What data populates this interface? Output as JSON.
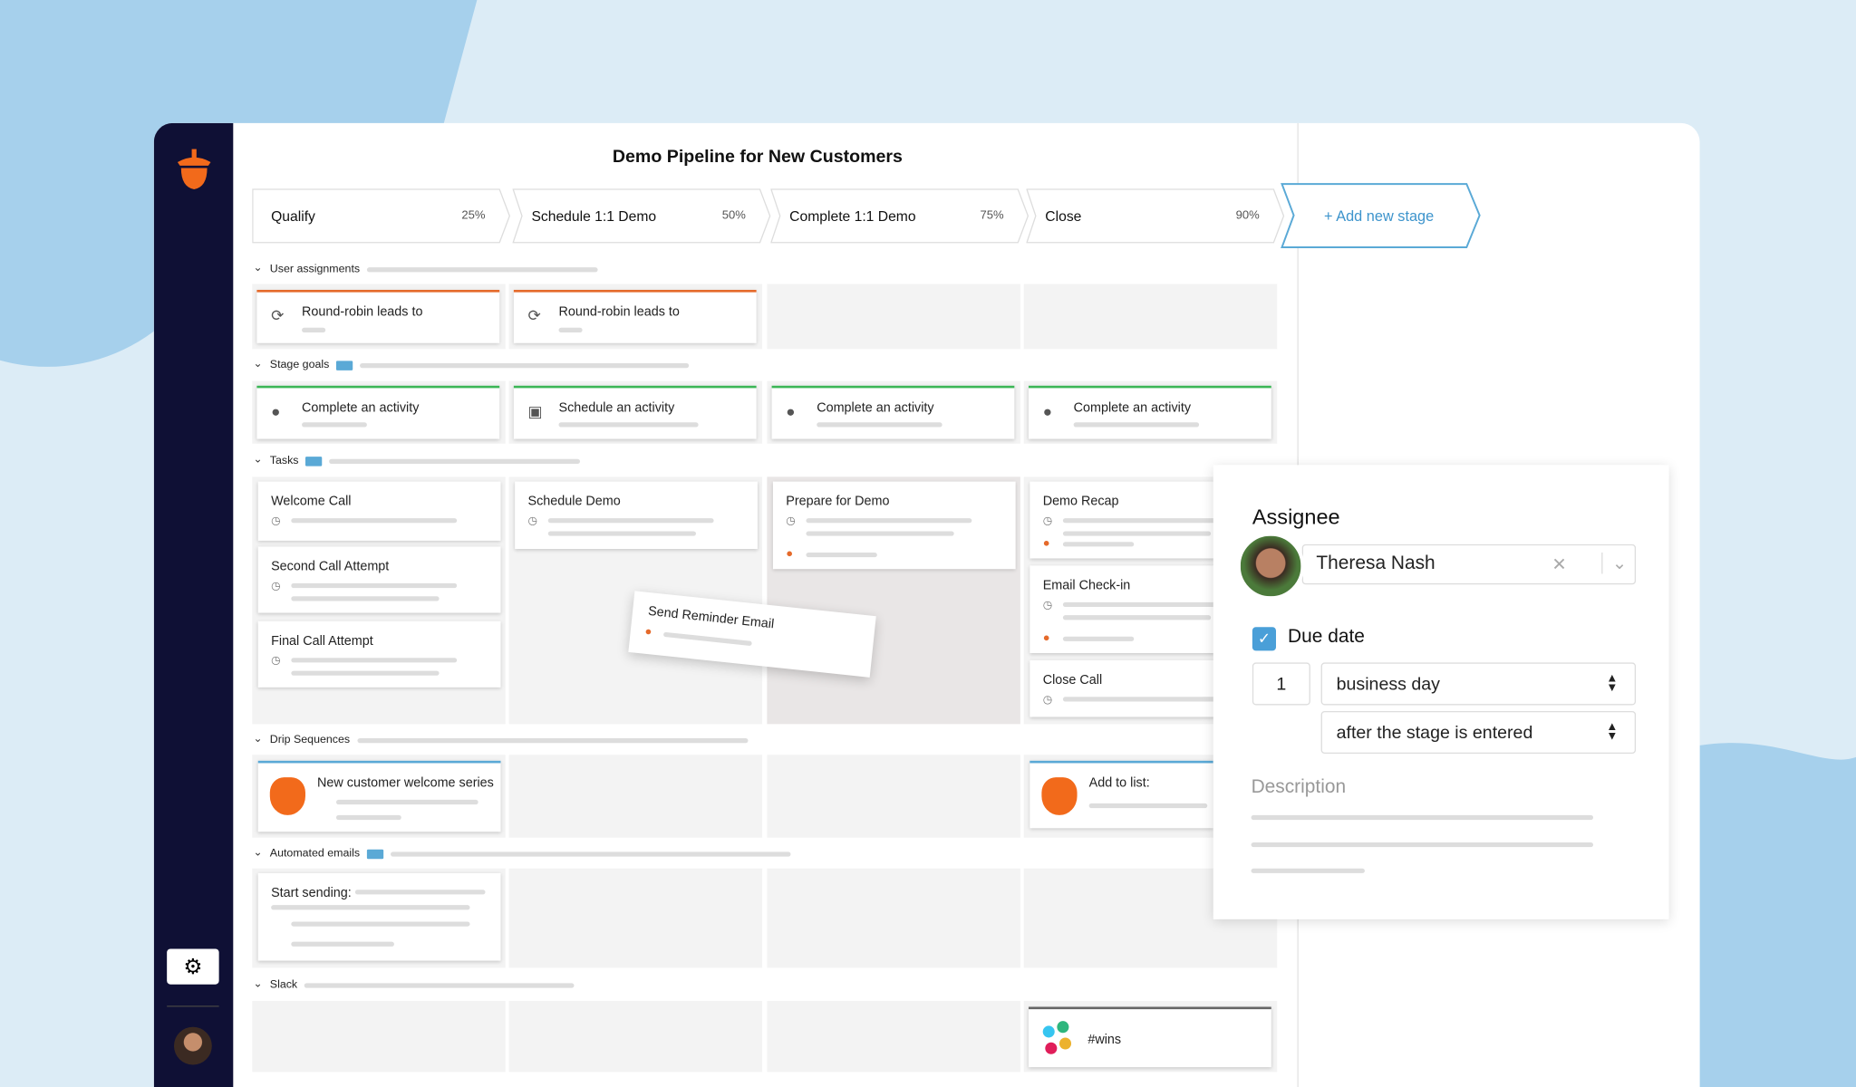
{
  "title": "Demo Pipeline for New Customers",
  "stages": [
    {
      "name": "Qualify",
      "percent": "25%"
    },
    {
      "name": "Schedule 1:1 Demo",
      "percent": "50%"
    },
    {
      "name": "Complete 1:1 Demo",
      "percent": "75%"
    },
    {
      "name": "Close",
      "percent": "90%"
    }
  ],
  "add_stage": "+ Add new stage",
  "sections": {
    "user_assignments": {
      "label": "User assignments",
      "cards": [
        "Round-robin leads to",
        "Round-robin leads to"
      ]
    },
    "stage_goals": {
      "label": "Stage goals",
      "cards": [
        "Complete an activity",
        "Schedule an activity",
        "Complete an activity",
        "Complete an activity"
      ]
    },
    "tasks": {
      "label": "Tasks",
      "columns": [
        [
          "Welcome Call",
          "Second Call Attempt",
          "Final Call Attempt"
        ],
        [
          "Schedule Demo"
        ],
        [
          "Prepare for Demo"
        ],
        [
          "Demo Recap",
          "Email Check-in",
          "Close Call"
        ]
      ],
      "dragging": "Send Reminder Email"
    },
    "drip_sequences": {
      "label": "Drip Sequences",
      "cards": [
        "New customer welcome series",
        "Add to list:"
      ]
    },
    "automated_emails": {
      "label": "Automated emails",
      "cards": [
        "Start sending:"
      ]
    },
    "slack": {
      "label": "Slack",
      "cards": [
        "#wins"
      ]
    }
  },
  "assignee_panel": {
    "title": "Assignee",
    "assignee": "Theresa Nash",
    "due_date_label": "Due date",
    "due_amount": "1",
    "unit": "business day",
    "relative": "after the stage is entered",
    "description_label": "Description"
  }
}
